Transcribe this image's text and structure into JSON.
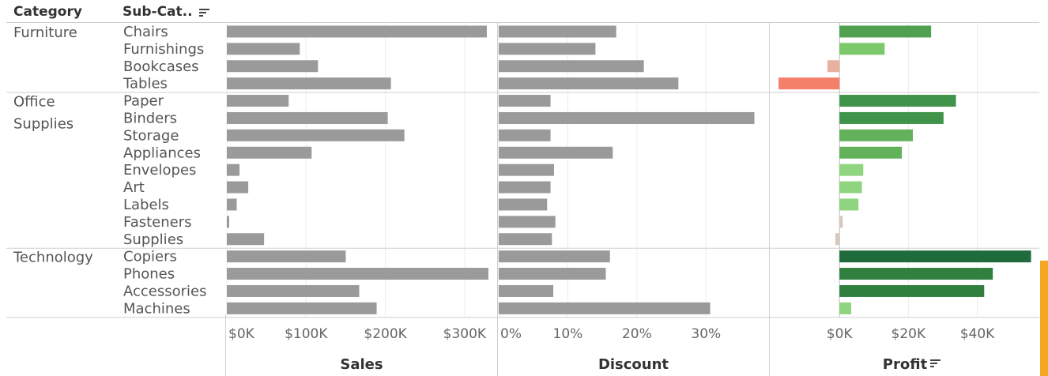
{
  "headers": {
    "category": "Category",
    "subcategory": "Sub-Cat..",
    "measures": [
      "Sales",
      "Discount",
      "Profit"
    ]
  },
  "colors": {
    "bar_gray": "#9a9a9a",
    "profit_negative_strong": "#f4806a",
    "profit_negative_light": "#e8b09f",
    "profit_neutral": "#d6c8bc",
    "profit_green_light": "#8fd47e",
    "profit_green": "#5fae54",
    "profit_green_dark": "#1f6b3c",
    "accent_right_edge": "#f5a623"
  },
  "icons": [
    "sort-icon"
  ],
  "chart_data": {
    "type": "bar",
    "orientation": "horizontal",
    "groups": [
      {
        "name": "Furniture",
        "label_lines": [
          "Furniture"
        ],
        "subcategories": [
          "Chairs",
          "Furnishings",
          "Bookcases",
          "Tables"
        ]
      },
      {
        "name": "Office Supplies",
        "label_lines": [
          "Office",
          "Supplies"
        ],
        "subcategories": [
          "Paper",
          "Binders",
          "Storage",
          "Appliances",
          "Envelopes",
          "Art",
          "Labels",
          "Fasteners",
          "Supplies"
        ]
      },
      {
        "name": "Technology",
        "label_lines": [
          "Technology"
        ],
        "subcategories": [
          "Copiers",
          "Phones",
          "Accessories",
          "Machines"
        ]
      }
    ],
    "rows": [
      {
        "category": "Furniture",
        "subcategory": "Chairs",
        "sales": 328000,
        "discount": 0.17,
        "profit": 26600
      },
      {
        "category": "Furniture",
        "subcategory": "Furnishings",
        "sales": 92000,
        "discount": 0.14,
        "profit": 13100
      },
      {
        "category": "Furniture",
        "subcategory": "Bookcases",
        "sales": 115000,
        "discount": 0.21,
        "profit": -3500
      },
      {
        "category": "Furniture",
        "subcategory": "Tables",
        "sales": 207000,
        "discount": 0.26,
        "profit": -17700
      },
      {
        "category": "Office Supplies",
        "subcategory": "Paper",
        "sales": 78000,
        "discount": 0.075,
        "profit": 33800
      },
      {
        "category": "Office Supplies",
        "subcategory": "Binders",
        "sales": 203000,
        "discount": 0.37,
        "profit": 30200
      },
      {
        "category": "Office Supplies",
        "subcategory": "Storage",
        "sales": 224000,
        "discount": 0.075,
        "profit": 21300
      },
      {
        "category": "Office Supplies",
        "subcategory": "Appliances",
        "sales": 107000,
        "discount": 0.165,
        "profit": 18100
      },
      {
        "category": "Office Supplies",
        "subcategory": "Envelopes",
        "sales": 16000,
        "discount": 0.08,
        "profit": 6900
      },
      {
        "category": "Office Supplies",
        "subcategory": "Art",
        "sales": 27000,
        "discount": 0.075,
        "profit": 6500
      },
      {
        "category": "Office Supplies",
        "subcategory": "Labels",
        "sales": 12500,
        "discount": 0.07,
        "profit": 5500
      },
      {
        "category": "Office Supplies",
        "subcategory": "Fasteners",
        "sales": 3000,
        "discount": 0.082,
        "profit": 950
      },
      {
        "category": "Office Supplies",
        "subcategory": "Supplies",
        "sales": 47000,
        "discount": 0.077,
        "profit": -1200
      },
      {
        "category": "Technology",
        "subcategory": "Copiers",
        "sales": 150000,
        "discount": 0.161,
        "profit": 55600
      },
      {
        "category": "Technology",
        "subcategory": "Phones",
        "sales": 330000,
        "discount": 0.155,
        "profit": 44500
      },
      {
        "category": "Technology",
        "subcategory": "Accessories",
        "sales": 167000,
        "discount": 0.079,
        "profit": 42000
      },
      {
        "category": "Technology",
        "subcategory": "Machines",
        "sales": 189000,
        "discount": 0.306,
        "profit": 3400
      }
    ],
    "axes": {
      "sales": {
        "title": "Sales",
        "domain": [
          0,
          340000
        ],
        "ticks": [
          0,
          100000,
          200000,
          300000
        ],
        "tick_labels": [
          "$0K",
          "$100K",
          "$200K",
          "$300K"
        ]
      },
      "discount": {
        "title": "Discount",
        "domain": [
          0,
          0.39
        ],
        "ticks": [
          0,
          0.1,
          0.2,
          0.3
        ],
        "tick_labels": [
          "0%",
          "10%",
          "20%",
          "30%"
        ]
      },
      "profit": {
        "title": "Profit",
        "domain": [
          -20000,
          58000
        ],
        "ticks": [
          0,
          20000,
          40000
        ],
        "tick_labels": [
          "$0K",
          "$20K",
          "$40K"
        ]
      }
    },
    "gridlines": true,
    "legend": "none"
  }
}
